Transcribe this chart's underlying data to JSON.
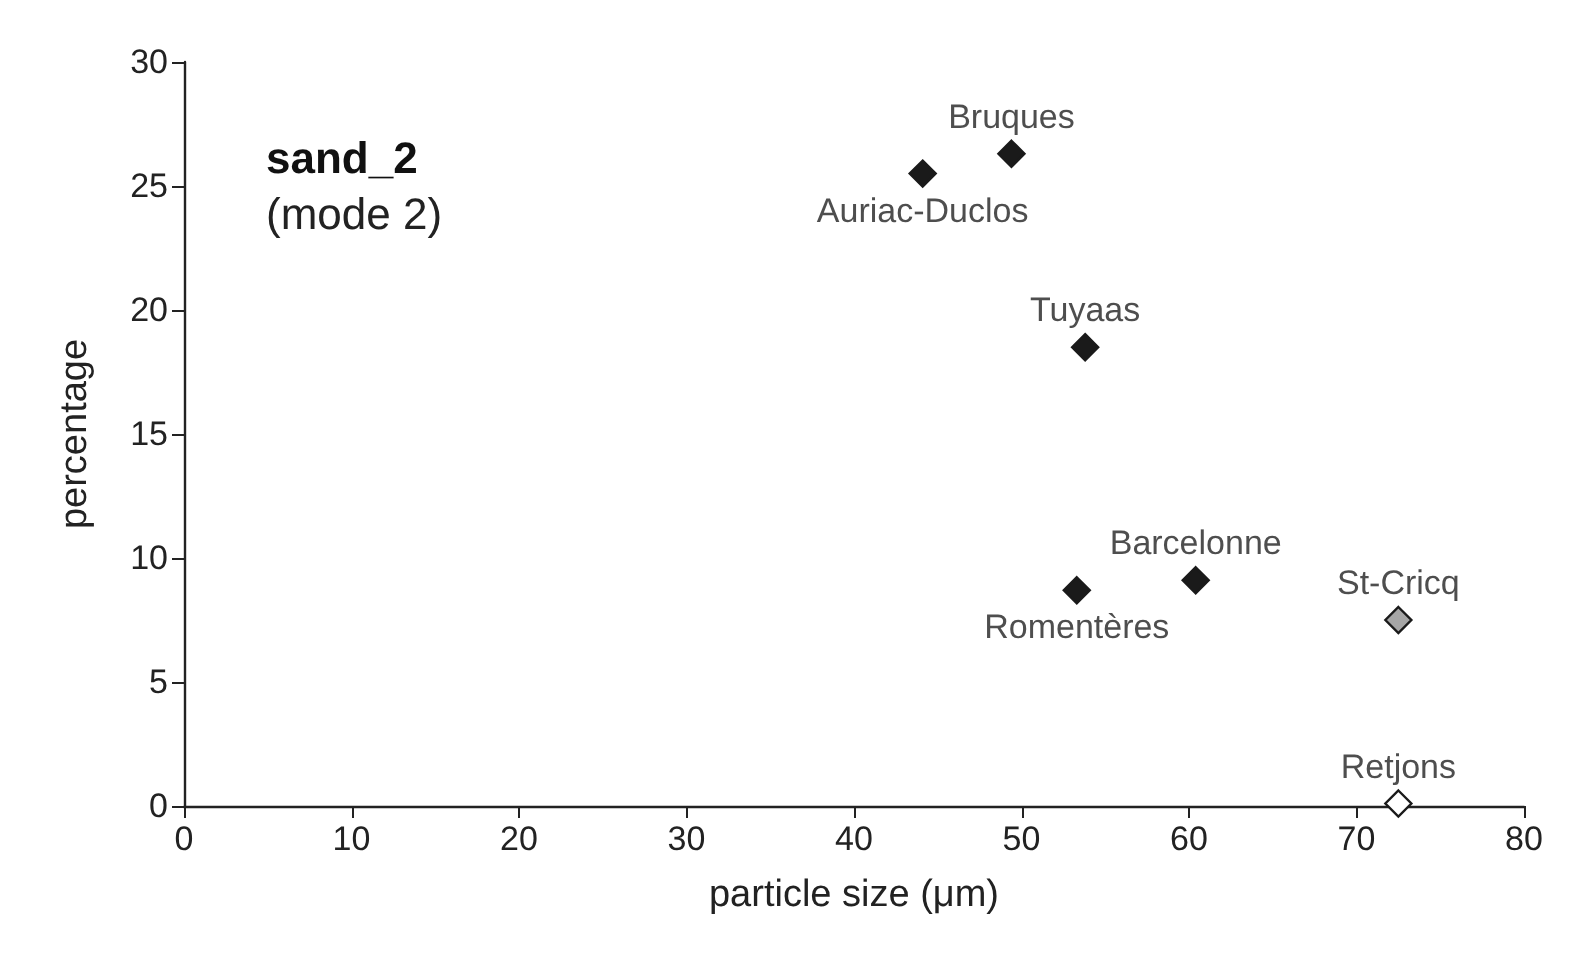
{
  "chart_data": {
    "type": "scatter",
    "title": "sand_2",
    "subtitle": "(mode 2)",
    "xlabel": "particle size (μm)",
    "ylabel": "percentage",
    "xlim": [
      0,
      80
    ],
    "xticks": [
      0,
      10,
      20,
      30,
      40,
      50,
      60,
      70,
      80
    ],
    "ylim": [
      0,
      30
    ],
    "yticks": [
      0,
      5,
      10,
      15,
      20,
      25,
      30
    ],
    "grid": false,
    "marker": "diamond",
    "series": [
      {
        "x": [
          44.1,
          49.4,
          53.8,
          53.3,
          60.4,
          72.5,
          72.5
        ],
        "values": [
          25.5,
          26.3,
          18.5,
          8.7,
          9.1,
          7.5,
          0.1
        ],
        "colors": [
          "#1a1a1a",
          "#1a1a1a",
          "#1a1a1a",
          "#1a1a1a",
          "#1a1a1a",
          "#a6a6a6",
          "#ffffff"
        ]
      }
    ],
    "annotations": [
      {
        "text": "Auriac-Duclos",
        "x": 44.1,
        "y": 25.5
      },
      {
        "text": "Bruques",
        "x": 49.4,
        "y": 26.3
      },
      {
        "text": "Tuyaas",
        "x": 53.8,
        "y": 18.5
      },
      {
        "text": "Romentères",
        "x": 53.3,
        "y": 8.7
      },
      {
        "text": "Barcelonne",
        "x": 60.4,
        "y": 9.1
      },
      {
        "text": "St-Cricq",
        "x": 72.5,
        "y": 7.5
      },
      {
        "text": "Retjons",
        "x": 72.5,
        "y": 0.1
      }
    ]
  }
}
